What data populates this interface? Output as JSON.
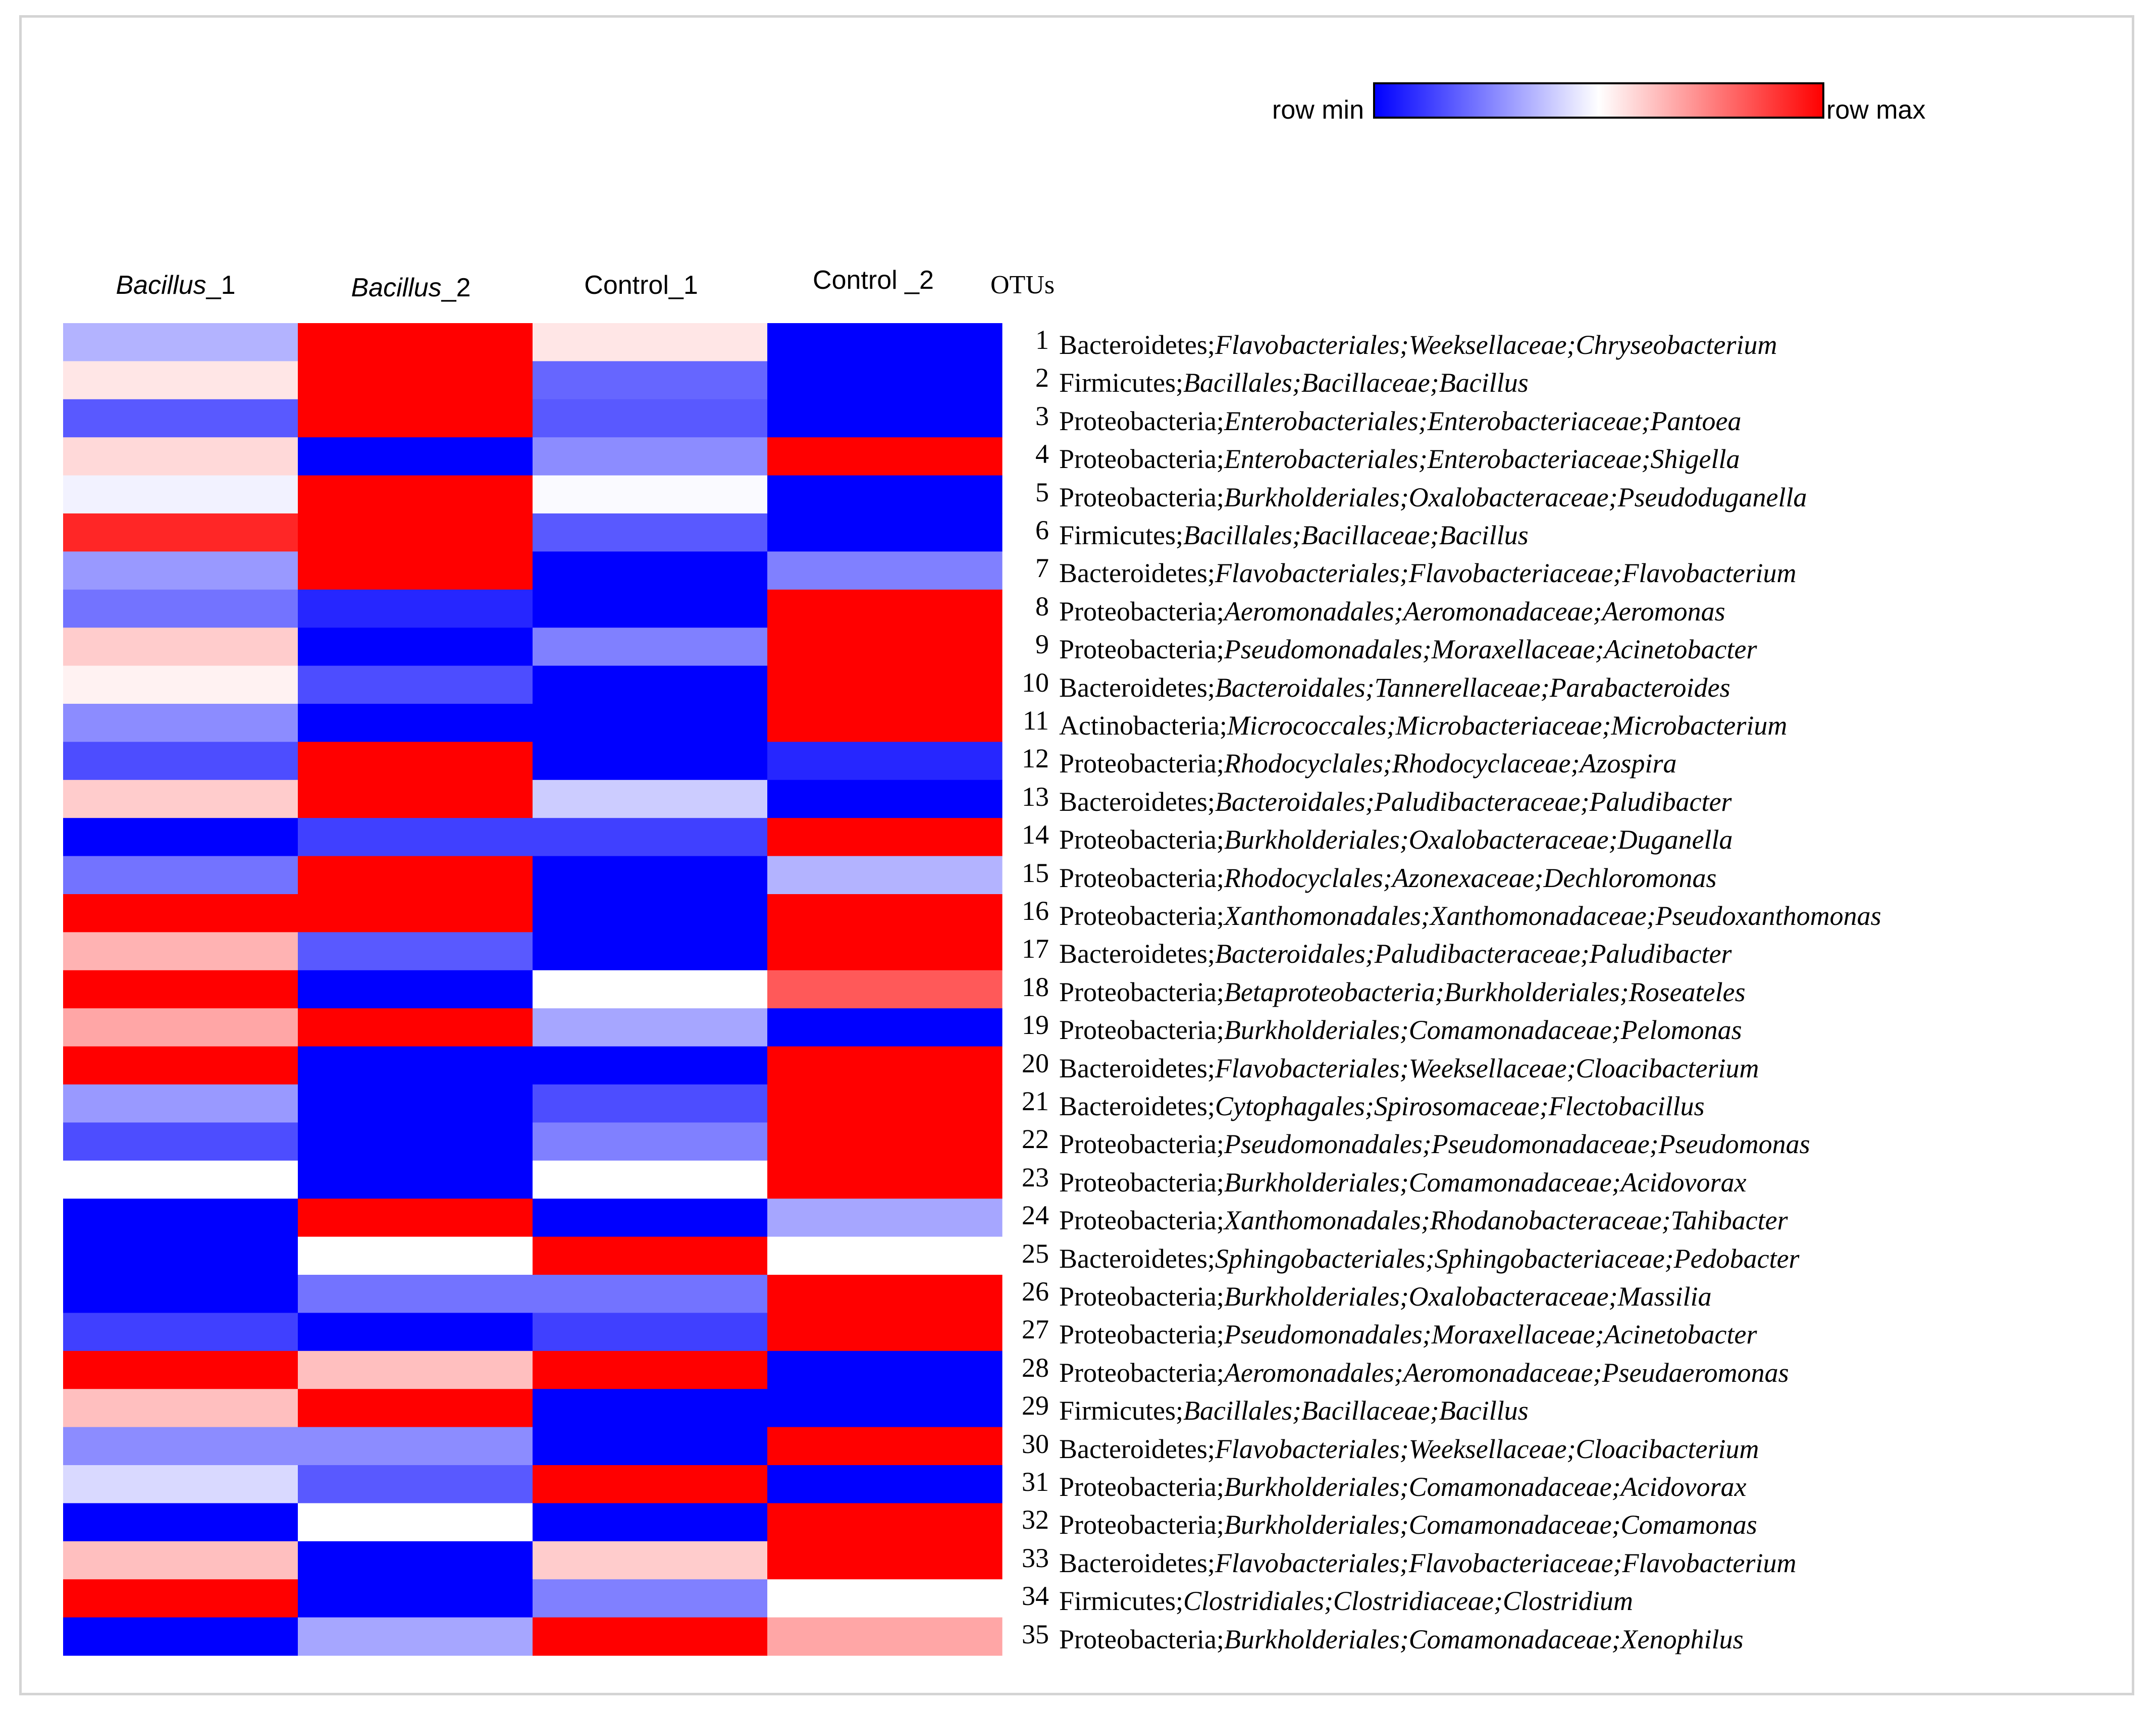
{
  "legend": {
    "min_label": "row min",
    "max_label": "row max",
    "colors": {
      "min": "#0000ff",
      "mid": "#ffffff",
      "max": "#ff0000"
    }
  },
  "header": {
    "otus_label": "OTUs"
  },
  "chart_data": {
    "type": "heatmap",
    "title": "",
    "columns": [
      {
        "prefix": "Bacillus",
        "suffix": "_1",
        "italic_prefix": true
      },
      {
        "prefix": "Bacillus",
        "suffix": "_2",
        "italic_prefix": true
      },
      {
        "prefix": "Control_1",
        "suffix": "",
        "italic_prefix": false
      },
      {
        "prefix": "Control _2",
        "suffix": "",
        "italic_prefix": false
      }
    ],
    "scale": "row-normalized: -1 = row min (blue), 0 = white, 1 = row max (red)",
    "rows": [
      {
        "otu": "1",
        "phylum": "Bacteroidetes",
        "lineage": "Flavobacteriales;Weeksellaceae;Chryseobacterium",
        "values": [
          -0.3,
          1,
          0.1,
          -1
        ]
      },
      {
        "otu": "2",
        "phylum": "Firmicutes",
        "lineage": "Bacillales;Bacillaceae;Bacillus",
        "values": [
          0.1,
          1,
          -0.6,
          -1
        ]
      },
      {
        "otu": "3",
        "phylum": "Proteobacteria",
        "lineage": "Enterobacteriales;Enterobacteriaceae;Pantoea",
        "values": [
          -0.65,
          1,
          -0.65,
          -1
        ]
      },
      {
        "otu": "4",
        "phylum": "Proteobacteria",
        "lineage": "Enterobacteriales;Enterobacteriaceae;Shigella",
        "values": [
          0.15,
          -1,
          -0.45,
          1
        ]
      },
      {
        "otu": "5",
        "phylum": "Proteobacteria",
        "lineage": "Burkholderiales;Oxalobacteraceae;Pseudoduganella",
        "values": [
          -0.05,
          1,
          -0.02,
          -1
        ]
      },
      {
        "otu": "6",
        "phylum": "Firmicutes",
        "lineage": "Bacillales;Bacillaceae;Bacillus",
        "values": [
          0.85,
          1,
          -0.65,
          -1
        ]
      },
      {
        "otu": "7",
        "phylum": "Bacteroidetes",
        "lineage": "Flavobacteriales;Flavobacteriaceae;Flavobacterium",
        "values": [
          -0.4,
          1,
          -1,
          -0.5
        ]
      },
      {
        "otu": "8",
        "phylum": "Proteobacteria",
        "lineage": "Aeromonadales;Aeromonadaceae;Aeromonas",
        "values": [
          -0.55,
          -0.85,
          -1,
          1
        ]
      },
      {
        "otu": "9",
        "phylum": "Proteobacteria",
        "lineage": "Pseudomonadales;Moraxellaceae;Acinetobacter",
        "values": [
          0.2,
          -1,
          -0.5,
          1
        ]
      },
      {
        "otu": "10",
        "phylum": "Bacteroidetes",
        "lineage": "Bacteroidales;Tannerellaceae;Parabacteroides",
        "values": [
          0.05,
          -0.7,
          -1,
          1
        ]
      },
      {
        "otu": "11",
        "phylum": "Actinobacteria",
        "lineage": "Micrococcales;Microbacteriaceae;Microbacterium",
        "values": [
          -0.45,
          -1,
          -1,
          1
        ]
      },
      {
        "otu": "12",
        "phylum": "Proteobacteria",
        "lineage": "Rhodocyclales;Rhodocyclaceae;Azospira",
        "values": [
          -0.7,
          1,
          -1,
          -0.85
        ]
      },
      {
        "otu": "13",
        "phylum": "Bacteroidetes",
        "lineage": "Bacteroidales;Paludibacteraceae;Paludibacter",
        "values": [
          0.2,
          1,
          -0.2,
          -1
        ]
      },
      {
        "otu": "14",
        "phylum": "Proteobacteria",
        "lineage": "Burkholderiales;Oxalobacteraceae;Duganella",
        "values": [
          -1,
          -0.75,
          -0.75,
          1
        ]
      },
      {
        "otu": "15",
        "phylum": "Proteobacteria",
        "lineage": "Rhodocyclales;Azonexaceae;Dechloromonas",
        "values": [
          -0.55,
          1,
          -1,
          -0.3
        ]
      },
      {
        "otu": "16",
        "phylum": "Proteobacteria",
        "lineage": "Xanthomonadales;Xanthomonadaceae;Pseudoxanthomonas",
        "values": [
          1,
          1,
          -1,
          1
        ]
      },
      {
        "otu": "17",
        "phylum": "Bacteroidetes",
        "lineage": "Bacteroidales;Paludibacteraceae;Paludibacter",
        "values": [
          0.3,
          -0.65,
          -1,
          1
        ]
      },
      {
        "otu": "18",
        "phylum": "Proteobacteria",
        "lineage": "Betaproteobacteria;Burkholderiales;Roseateles",
        "values": [
          1,
          -1,
          0,
          0.65
        ]
      },
      {
        "otu": "19",
        "phylum": "Proteobacteria",
        "lineage": "Burkholderiales;Comamonadaceae;Pelomonas",
        "values": [
          0.35,
          1,
          -0.35,
          -1
        ]
      },
      {
        "otu": "20",
        "phylum": "Bacteroidetes",
        "lineage": "Flavobacteriales;Weeksellaceae;Cloacibacterium",
        "values": [
          1,
          -1,
          -1,
          1
        ]
      },
      {
        "otu": "21",
        "phylum": "Bacteroidetes",
        "lineage": "Cytophagales;Spirosomaceae;Flectobacillus",
        "values": [
          -0.4,
          -1,
          -0.7,
          1
        ]
      },
      {
        "otu": "22",
        "phylum": "Proteobacteria",
        "lineage": "Pseudomonadales;Pseudomonadaceae;Pseudomonas",
        "values": [
          -0.7,
          -1,
          -0.5,
          1
        ]
      },
      {
        "otu": "23",
        "phylum": "Proteobacteria",
        "lineage": "Burkholderiales;Comamonadaceae;Acidovorax",
        "values": [
          0,
          -1,
          0,
          1
        ]
      },
      {
        "otu": "24",
        "phylum": "Proteobacteria",
        "lineage": "Xanthomonadales;Rhodanobacteraceae;Tahibacter",
        "values": [
          -1,
          1,
          -1,
          -0.35
        ]
      },
      {
        "otu": "25",
        "phylum": "Bacteroidetes",
        "lineage": "Sphingobacteriales;Sphingobacteriaceae;Pedobacter",
        "values": [
          -1,
          0,
          1,
          0
        ]
      },
      {
        "otu": "26",
        "phylum": "Proteobacteria",
        "lineage": "Burkholderiales;Oxalobacteraceae;Massilia",
        "values": [
          -1,
          -0.55,
          -0.55,
          1
        ]
      },
      {
        "otu": "27",
        "phylum": "Proteobacteria",
        "lineage": "Pseudomonadales;Moraxellaceae;Acinetobacter",
        "values": [
          -0.75,
          -1,
          -0.75,
          1
        ]
      },
      {
        "otu": "28",
        "phylum": "Proteobacteria",
        "lineage": "Aeromonadales;Aeromonadaceae;Pseudaeromonas",
        "values": [
          1,
          0.25,
          1,
          -1
        ]
      },
      {
        "otu": "29",
        "phylum": "Firmicutes",
        "lineage": "Bacillales;Bacillaceae;Bacillus",
        "values": [
          0.25,
          1,
          -1,
          -1
        ]
      },
      {
        "otu": "30",
        "phylum": "Bacteroidetes",
        "lineage": "Flavobacteriales;Weeksellaceae;Cloacibacterium",
        "values": [
          -0.45,
          -0.45,
          -1,
          1
        ]
      },
      {
        "otu": "31",
        "phylum": "Proteobacteria",
        "lineage": "Burkholderiales;Comamonadaceae;Acidovorax",
        "values": [
          -0.15,
          -0.65,
          1,
          -1
        ]
      },
      {
        "otu": "32",
        "phylum": "Proteobacteria",
        "lineage": "Burkholderiales;Comamonadaceae;Comamonas",
        "values": [
          -1,
          0,
          -1,
          1
        ]
      },
      {
        "otu": "33",
        "phylum": "Bacteroidetes",
        "lineage": "Flavobacteriales;Flavobacteriaceae;Flavobacterium",
        "values": [
          0.25,
          -1,
          0.2,
          1
        ]
      },
      {
        "otu": "34",
        "phylum": "Firmicutes",
        "lineage": "Clostridiales;Clostridiaceae;Clostridium",
        "values": [
          1,
          -1,
          -0.5,
          0
        ]
      },
      {
        "otu": "35",
        "phylum": "Proteobacteria",
        "lineage": "Burkholderiales;Comamonadaceae;Xenophilus",
        "values": [
          -1,
          -0.35,
          1,
          0.35
        ]
      }
    ]
  }
}
